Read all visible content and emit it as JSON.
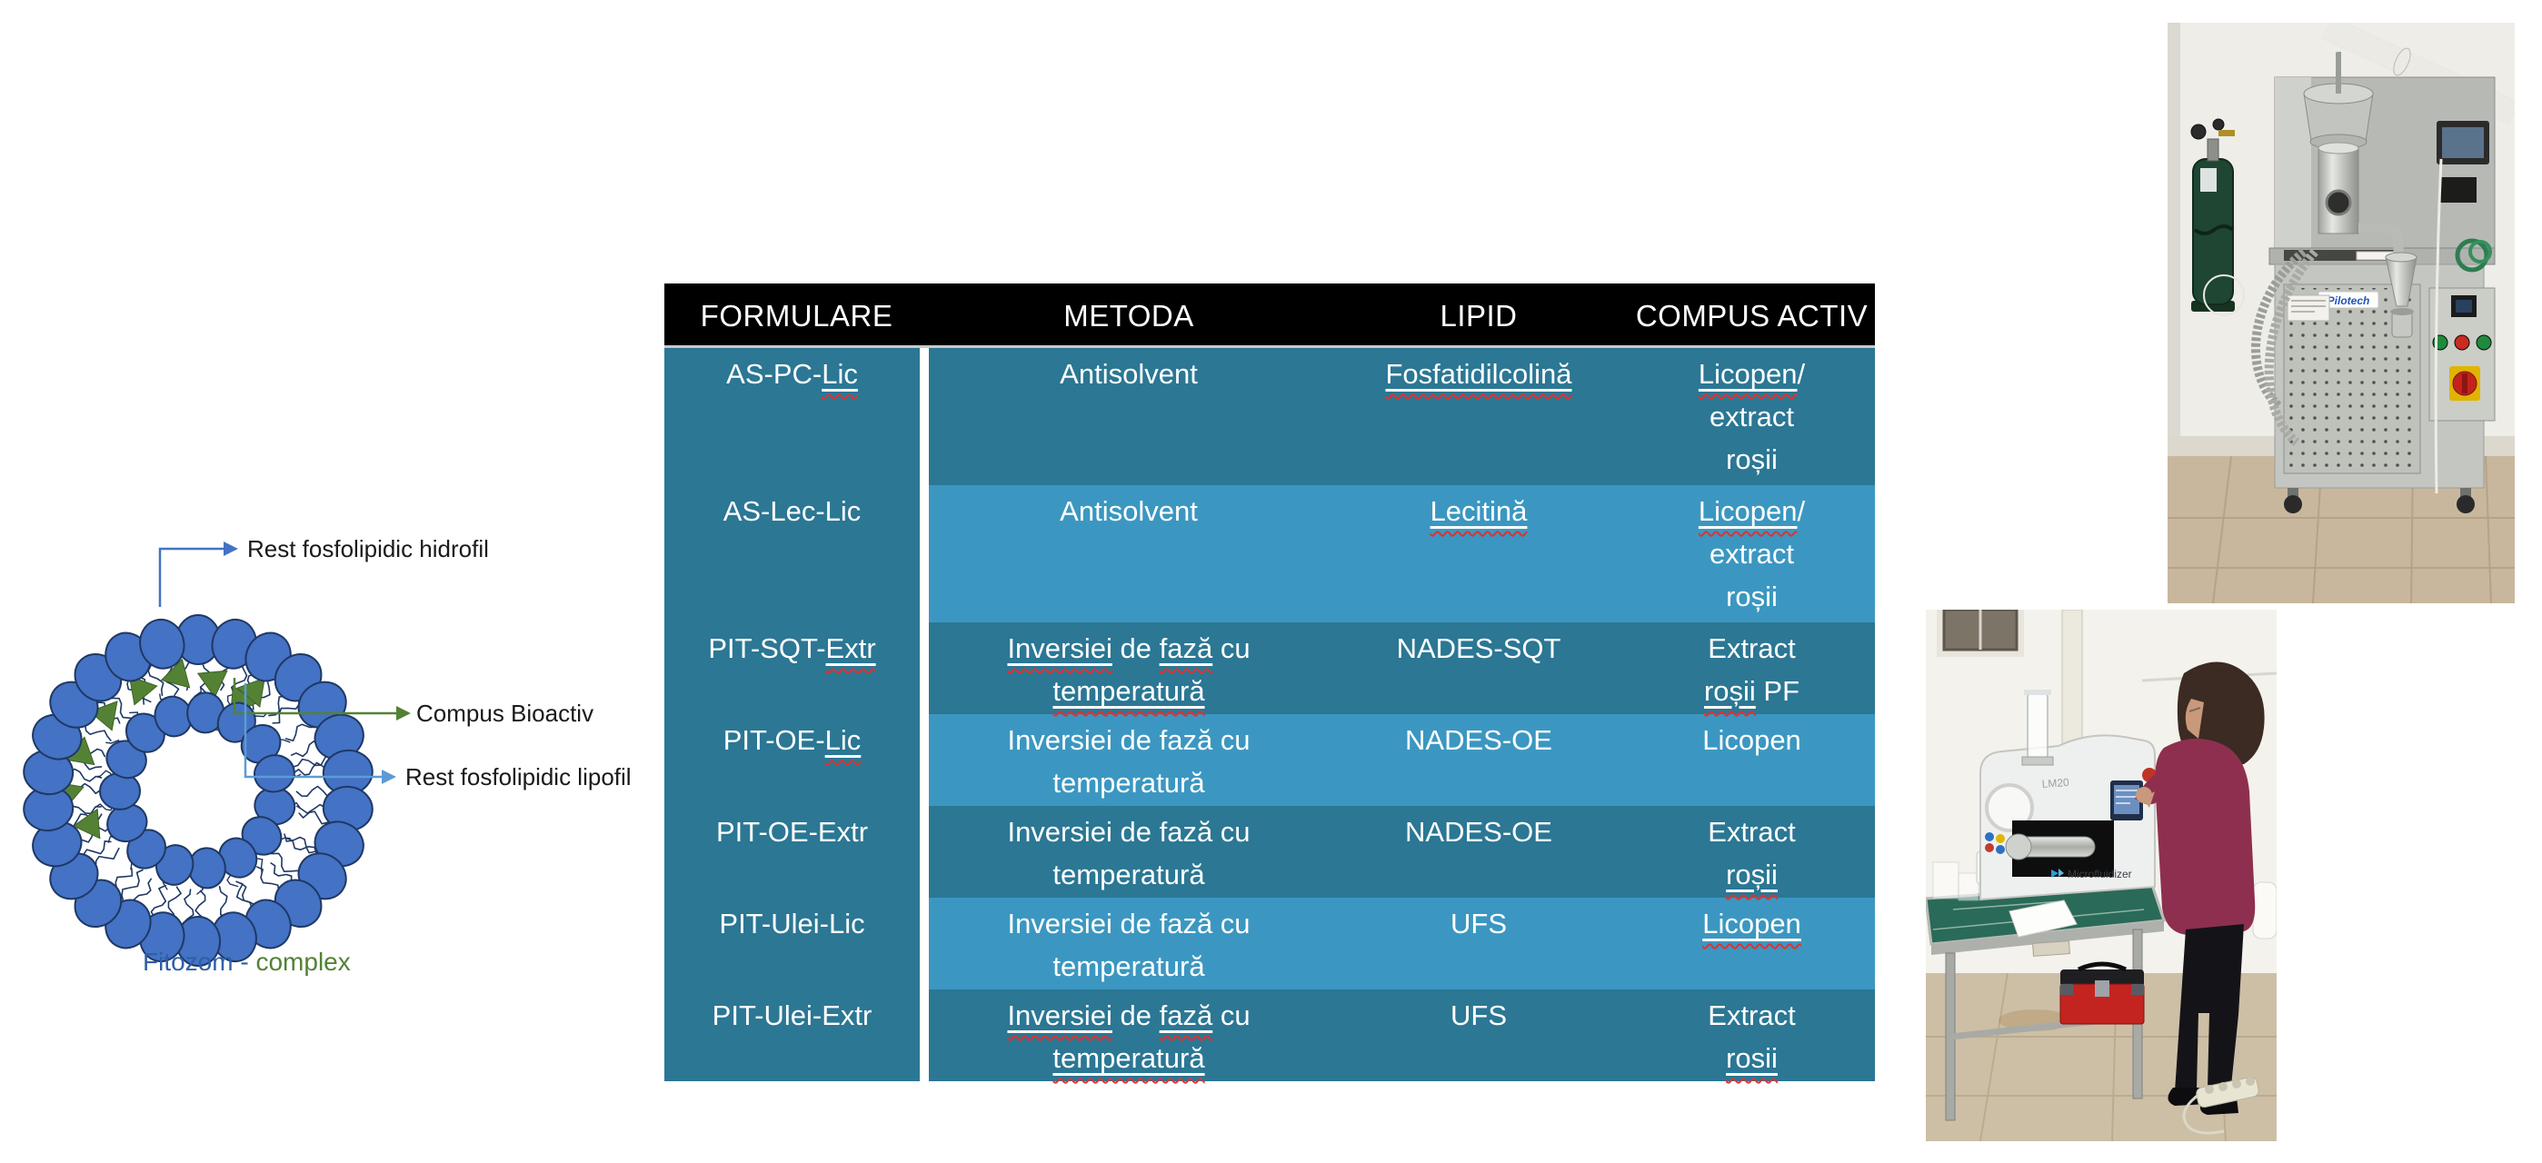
{
  "diagram": {
    "labels": {
      "hydrophilic": "Rest fosfolipidic hidrofil",
      "bioactive": "Compus Bioactiv",
      "lipophilic": "Rest fosfolipidic lipofil"
    },
    "caption": {
      "part1": "Fitozom",
      "separator": " - ",
      "part2": "complex"
    },
    "colors": {
      "bead_fill": "#4472C4",
      "bead_stroke": "#1F3864",
      "tail": "#1F3864",
      "triangle": "#548235",
      "arrow_blue": "#4472C4",
      "arrow_green": "#538135",
      "arrow_lightblue": "#5B9BD5",
      "caption_blue": "#2E5FA8",
      "caption_green": "#538135"
    }
  },
  "table": {
    "columns": [
      "FORMULARE",
      "METODA",
      "LIPID",
      "COMPUS ACTIV"
    ],
    "header_bg": "#000000",
    "row_dark": "#2b7794",
    "row_light": "#3b97c1",
    "spell_underline_note": "segments in [brackets] carry white underline + red squiggle",
    "rows": [
      {
        "shade": "dark",
        "cells": [
          "AS-PC-[Lic]",
          "Antisolvent",
          "[Fosfatidilcolină]",
          "[Licopen]/\nextract\nroșii"
        ]
      },
      {
        "shade": "light",
        "cells": [
          "AS-Lec-Lic",
          "Antisolvent",
          "[Lecitină]",
          "[Licopen]/\nextract\nroșii"
        ]
      },
      {
        "shade": "dark",
        "cells": [
          "PIT-SQT-[Extr]",
          "[Inversiei] de [fază] cu\n[temperatură]",
          "NADES-SQT",
          "Extract\n[roșii] PF"
        ]
      },
      {
        "shade": "light",
        "cells": [
          "PIT-OE-[Lic]",
          "Inversiei de fază cu\ntemperatură",
          "NADES-OE",
          "Licopen"
        ]
      },
      {
        "shade": "dark",
        "cells": [
          "PIT-OE-Extr",
          "Inversiei de fază cu\ntemperatură",
          "NADES-OE",
          "Extract\n[roșii]"
        ]
      },
      {
        "shade": "light",
        "cells": [
          "PIT-Ulei-Lic",
          "Inversiei de fază cu\ntemperatură",
          "UFS",
          "[Licopen]"
        ]
      },
      {
        "shade": "dark",
        "cells": [
          "PIT-Ulei-Extr",
          "[Inversiei] de [fază] cu\n[temperatură]",
          "UFS",
          "Extract\n[rosii]"
        ]
      }
    ]
  },
  "photos": {
    "spray_dryer": {
      "brand": "Pilotech"
    },
    "microfluidizer": {
      "model": "LM20",
      "brand": "Microfluidizer"
    }
  }
}
